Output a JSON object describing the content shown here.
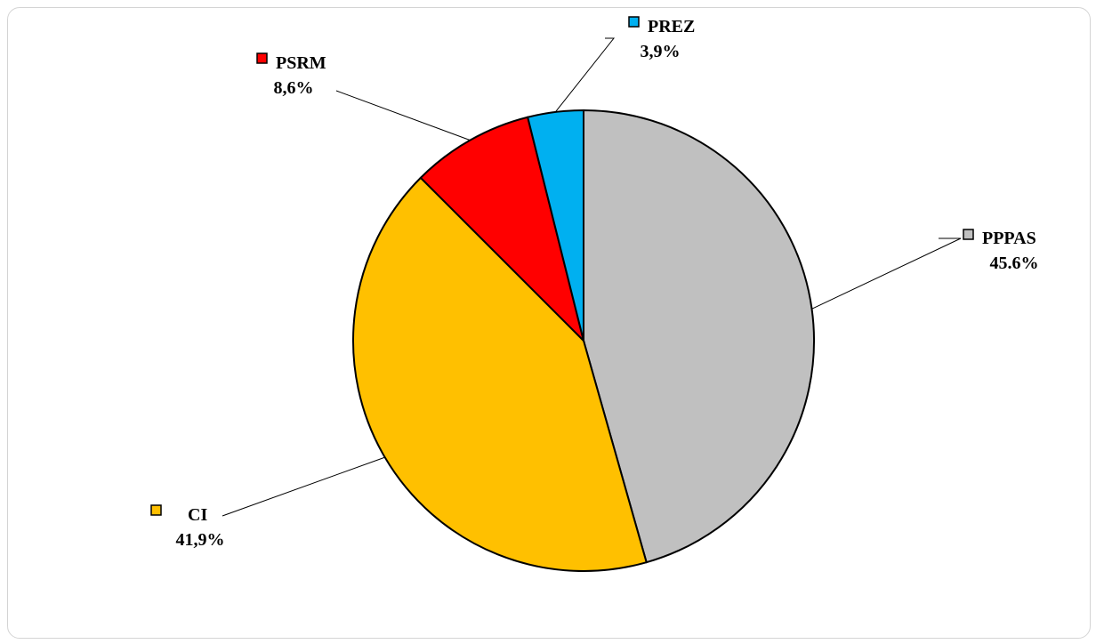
{
  "chart_data": {
    "type": "pie",
    "title": "",
    "slices": [
      {
        "label": "PPPAS",
        "value": 45.6,
        "value_label": "45.6%",
        "color": "#c0c0c0"
      },
      {
        "label": "CI",
        "value": 41.9,
        "value_label": "41,9%",
        "color": "#ffc000"
      },
      {
        "label": "PSRM",
        "value": 8.6,
        "value_label": "8,6%",
        "color": "#ff0000"
      },
      {
        "label": "PREZ",
        "value": 3.9,
        "value_label": "3,9%",
        "color": "#00b0f0"
      }
    ],
    "start": "12 o'clock",
    "direction": "clockwise",
    "labels": "outside with leader lines"
  }
}
